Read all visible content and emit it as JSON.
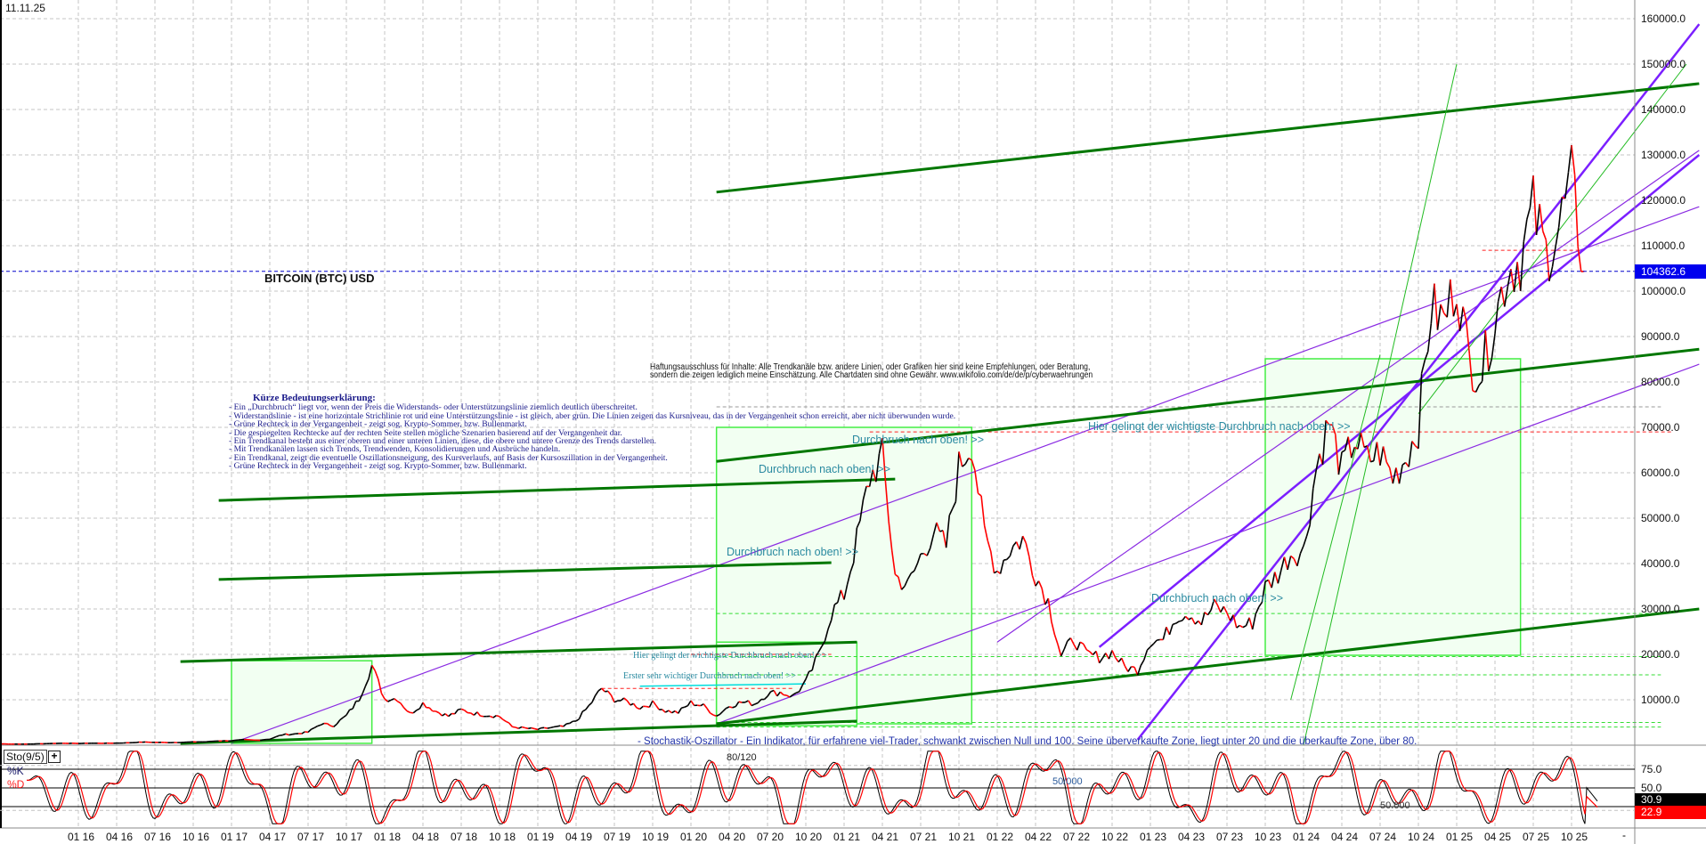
{
  "header": {
    "date": "11.11.25",
    "title": "BITCOIN (BTC) USD"
  },
  "legend": {
    "title": "Kürze Bedeutungserklärung:",
    "lines": [
      "- Ein „Durchbruch“ liegt vor, wenn der Preis die Widerstands- oder Unterstützungslinie ziemlich deutlich überschreitet.",
      "- Widerstandslinie - ist eine horizontale Strichlinie rot und eine Unterstützungslinie - ist gleich, aber grün. Die Linien zeigen das Kursniveau, das in der Vergangenheit schon erreicht, aber nicht überwunden wurde.",
      "- Grüne Rechteck in der Vergangenheit - zeigt sog. Krypto-Sommer, bzw. Bullenmarkt.",
      "- Die gespiegelten Rechtecke auf der rechten Seite stellen mögliche Szenarien basierend auf der Vergangenheit dar.",
      "- Ein Trendkanal besteht aus einer oberen und einer unteren Linien, diese, die obere und untere Grenze des Trends darstellen.",
      "- Mit Trendkanälen lassen sich Trends, Trendwenden, Konsolidierungen und Ausbrüche handeln.",
      " - Ein Trendkanal, zeigt die eventuelle Oszillationsneigung, des Kursverlaufs, auf Basis der Kursoszillation in der Vergangenheit.",
      "- Grüne Rechteck in der Vergangenheit - zeigt sog. Krypto-Sommer, bzw. Bullenmarkt."
    ]
  },
  "disclaimer": [
    "Haftungsausschluss für Inhalte: Alle Trendkanäle bzw. andere Linien, oder Grafiken hier sind keine Empfehlungen, oder Beratung,",
    "sondern die zeigen lediglich meine  Einschätzung. Alle Chartdaten sind ohne Gewähr.  www.wikifolio.com/de/de/p/cyberwaehrungen"
  ],
  "annotations": {
    "breakout1": "Durchbruch nach oben! >>",
    "breakout2": "Durchbruch nach oben! >>",
    "breakout3": "Durchbruch nach oben! >>",
    "breakout4": "Durchbruch nach oben! >>",
    "most_important": "Hier gelingt der wichtigste Durchbruch nach oben! >>",
    "most_important_small": "Hier gelingt der wichtigste Durchbruch nach oben! >>",
    "first_important": "Erster sehr wichtiger Durchbruch nach oben! >>",
    "stochastic_desc": "- Stochastik-Oszillator - Ein Indikator, für erfahrene viel-Trader, schwankt zwischen Null und 100. Seine überverkaufte Zone, liegt unter 20 und die überkaufte Zone, über 80.",
    "label_80_120": "80/120",
    "label_50000a": "50/000",
    "label_50000b": "50.000"
  },
  "indicator": {
    "name": "Sto(9/5)",
    "k_label": "%K",
    "d_label": "%D",
    "k_value": "30.9",
    "d_value": "22.9",
    "levels": [
      "75.0",
      "50.0"
    ],
    "k_color": "#000000",
    "d_color": "#ff0000",
    "add_icon": "plus-icon"
  },
  "toolbar": {
    "dash_label": "-"
  },
  "price_label": "104362.6",
  "colors": {
    "price_label_bg": "#0000ee",
    "trend_green": "#007700",
    "channel_purple": "#8a2be2",
    "box_fill": "#f2fff2",
    "box_stroke": "#44ee44",
    "up": "#000000",
    "down": "#ff0000"
  },
  "chart_data": {
    "type": "line",
    "title": "BITCOIN (BTC) USD",
    "y_axis": {
      "position": "right",
      "ylim": [
        0,
        165000
      ],
      "ticks": [
        "10000.0",
        "20000.0",
        "30000.0",
        "40000.0",
        "50000.0",
        "60000.0",
        "70000.0",
        "80000.0",
        "90000.0",
        "100000.0",
        "110000.0",
        "120000.0",
        "130000.0",
        "140000.0",
        "150000.0",
        "160000.0"
      ]
    },
    "x_axis": {
      "ticks": [
        "01 16",
        "04 16",
        "07 16",
        "10 16",
        "01 17",
        "04 17",
        "07 17",
        "10 17",
        "01 18",
        "04 18",
        "07 18",
        "10 18",
        "01 19",
        "04 19",
        "07 19",
        "10 19",
        "01 20",
        "04 20",
        "07 20",
        "10 20",
        "01 21",
        "04 21",
        "07 21",
        "10 21",
        "01 22",
        "04 22",
        "07 22",
        "10 22",
        "01 23",
        "04 23",
        "07 23",
        "10 23",
        "01 24",
        "04 24",
        "07 24",
        "10 24",
        "01 25",
        "04 25",
        "07 25",
        "10 25"
      ]
    },
    "grid": true,
    "series": [
      {
        "start": "2015-07",
        "interval": "month",
        "values": [
          285,
          230,
          236,
          314,
          377,
          430,
          368,
          437,
          416,
          448,
          531,
          673,
          624,
          574,
          609,
          700,
          742,
          963,
          970,
          1190,
          1080,
          1350,
          2300,
          2480,
          2875,
          4700,
          4340,
          6470,
          10200,
          17500,
          10200,
          10300,
          6900,
          9240,
          7500,
          6400,
          7730,
          7030,
          6630,
          6370,
          4040,
          3740,
          3460,
          3850,
          4100,
          5350,
          8570,
          12500,
          10080,
          9600,
          8300,
          9200,
          7570,
          7200,
          9350,
          8600,
          6440,
          8660,
          9460,
          9140,
          11350,
          11650,
          10780,
          13800,
          19700,
          29000,
          33100,
          45200,
          58800,
          63500,
          37300,
          35000,
          41500,
          47100,
          43800,
          61300,
          67000,
          46300,
          38500,
          43200,
          45500,
          37700,
          31800,
          19800,
          23300,
          20050,
          19400,
          20500,
          17200,
          16550,
          23100,
          23150,
          28500,
          29250,
          27200,
          30500,
          29250,
          25950,
          26970,
          34660,
          37720,
          42280,
          42580,
          61200,
          71300,
          60600,
          67500,
          62700,
          64600,
          58900,
          63300,
          70200,
          96400,
          93400,
          102400,
          84300,
          82500,
          94200,
          104600,
          107100,
          118000,
          108200,
          114000,
          124000,
          104362
        ]
      }
    ],
    "trendlines_green": [
      [
        [
          "2020-03",
          121800
        ],
        [
          "2026-08",
          145700
        ]
      ],
      [
        [
          "2016-12",
          53900
        ],
        [
          "2021-05",
          58600
        ]
      ],
      [
        [
          "2016-12",
          36500
        ],
        [
          "2020-12",
          40200
        ]
      ],
      [
        [
          "2016-09",
          18400
        ],
        [
          "2021-02",
          22700
        ]
      ],
      [
        [
          "2020-03",
          62500
        ],
        [
          "2026-08",
          87200
        ]
      ],
      [
        [
          "2020-03",
          4700
        ],
        [
          "2026-08",
          30000
        ]
      ],
      [
        [
          "2016-09",
          400
        ],
        [
          "2021-02",
          5300
        ]
      ]
    ],
    "channels_purple": [
      [
        [
          "2017-01",
          400
        ],
        [
          "2026-08",
          118600
        ]
      ],
      [
        [
          "2020-03",
          4700
        ],
        [
          "2026-08",
          83900
        ]
      ],
      [
        [
          "2022-01",
          22700
        ],
        [
          "2026-08",
          131000
        ]
      ],
      [
        [
          "2022-12",
          1200
        ],
        [
          "2026-08",
          158800
        ]
      ],
      [
        [
          "2022-09",
          21600
        ],
        [
          "2026-08",
          130000
        ]
      ]
    ],
    "boxes": [
      [
        [
          "2017-01",
          18600
        ],
        [
          "2017-12",
          400
        ]
      ],
      [
        [
          "2020-03",
          70000
        ],
        [
          "2021-11",
          4700
        ]
      ],
      [
        [
          "2020-03",
          22700
        ],
        [
          "2021-02",
          4300
        ]
      ],
      [
        [
          "2023-10",
          85100
        ],
        [
          "2025-06",
          19800
        ]
      ]
    ],
    "current_price": 104362.6,
    "stochastic": {
      "k_last": 30.9,
      "d_last": 22.9,
      "levels": [
        25,
        50,
        75
      ]
    }
  }
}
